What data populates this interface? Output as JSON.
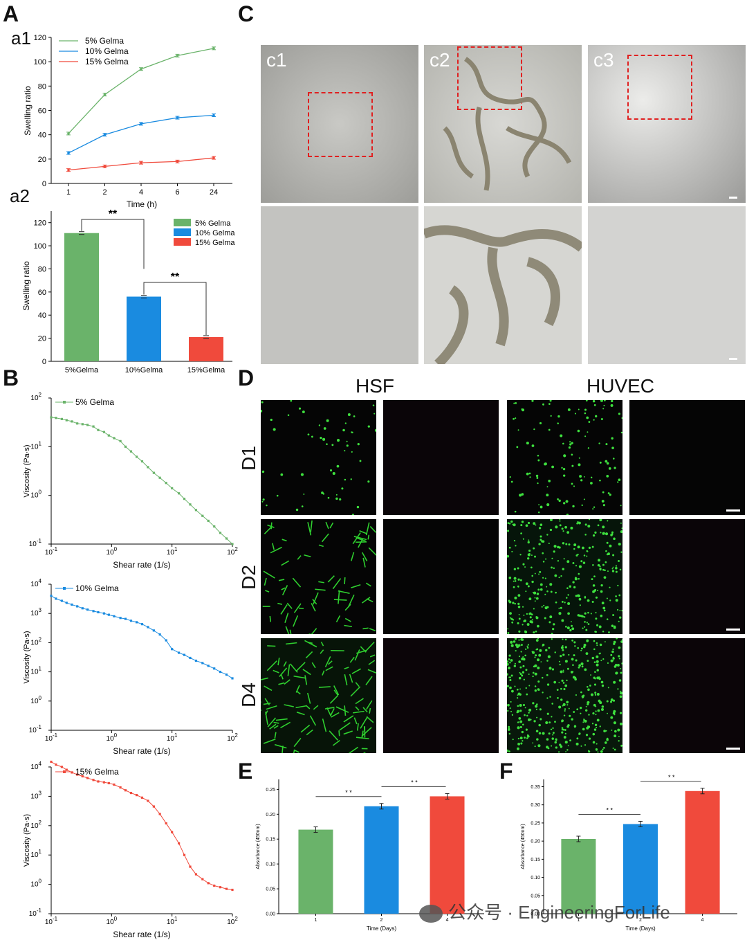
{
  "panels": {
    "A": "A",
    "a1": "a1",
    "a2": "a2",
    "B": "B",
    "C": "C",
    "D": "D",
    "E": "E",
    "F": "F"
  },
  "colors": {
    "green": "#6ab36a",
    "blue": "#1a8be0",
    "red": "#f04a3c"
  },
  "micro_labels": [
    "c1",
    "c2",
    "c3"
  ],
  "fluoro": {
    "columns": [
      "HSF",
      "HUVEC"
    ],
    "rows": [
      "D1",
      "D2",
      "D4"
    ]
  },
  "watermark": "公众号 · EngineeringForLife",
  "chart_data": [
    {
      "id": "a1",
      "type": "line",
      "ylabel": "Swelling ratio",
      "xlabel": "Time (h)",
      "categories": [
        "1",
        "2",
        "4",
        "6",
        "24"
      ],
      "ylim": [
        0,
        120
      ],
      "yticks": [
        0,
        20,
        40,
        60,
        80,
        100,
        120
      ],
      "legend": "top-left",
      "series": [
        {
          "name": "5% Gelma",
          "color": "#6ab36a",
          "values": [
            41,
            73,
            94,
            105,
            111
          ]
        },
        {
          "name": "10% Gelma",
          "color": "#1a8be0",
          "values": [
            25,
            40,
            49,
            54,
            56
          ]
        },
        {
          "name": "15% Gelma",
          "color": "#f04a3c",
          "values": [
            11,
            14,
            17,
            18,
            21
          ]
        }
      ]
    },
    {
      "id": "a2",
      "type": "bar",
      "ylabel": "Swelling ratio",
      "categories": [
        "5%Gelma",
        "10%Gelma",
        "15%Gelma"
      ],
      "values": [
        111,
        56,
        21
      ],
      "colors": [
        "#6ab36a",
        "#1a8be0",
        "#f04a3c"
      ],
      "ylim": [
        0,
        130
      ],
      "yticks": [
        0,
        20,
        40,
        60,
        80,
        100,
        120
      ],
      "legend_names": [
        "5% Gelma",
        "10% Gelma",
        "15% Gelma"
      ],
      "sig": [
        "**",
        "**"
      ]
    },
    {
      "id": "b1",
      "type": "line",
      "log": true,
      "name": "5% Gelma",
      "xlabel": "Shear rate (1/s)",
      "ylabel": "Viscosity (Pa·s)",
      "color": "#6ab36a",
      "ydecades": [
        -1,
        2
      ],
      "x": [
        0.1,
        0.12,
        0.15,
        0.18,
        0.22,
        0.27,
        0.33,
        0.4,
        0.5,
        0.6,
        0.75,
        0.9,
        1.1,
        1.4,
        1.7,
        2.1,
        2.6,
        3.2,
        4,
        5,
        6.3,
        8,
        10,
        13,
        16,
        20,
        25,
        32,
        40,
        50,
        63,
        80,
        100
      ],
      "y": [
        40,
        39,
        37,
        35,
        33,
        30,
        29,
        28,
        26,
        22,
        20,
        17,
        15,
        13,
        10,
        8,
        6.2,
        5,
        3.8,
        2.9,
        2.3,
        1.8,
        1.4,
        1.1,
        0.85,
        0.65,
        0.5,
        0.38,
        0.3,
        0.23,
        0.17,
        0.13,
        0.1
      ]
    },
    {
      "id": "b2",
      "type": "line",
      "log": true,
      "name": "10% Gelma",
      "xlabel": "Shear rate (1/s)",
      "ylabel": "Viscosity (Pa·s)",
      "color": "#1a8be0",
      "ydecades": [
        -1,
        4
      ],
      "x": [
        0.1,
        0.12,
        0.15,
        0.18,
        0.22,
        0.27,
        0.33,
        0.4,
        0.5,
        0.6,
        0.75,
        0.9,
        1.1,
        1.4,
        1.7,
        2.1,
        2.6,
        3.2,
        4,
        5,
        6.3,
        8,
        10,
        13,
        16,
        20,
        25,
        32,
        40,
        50,
        63,
        80,
        100
      ],
      "y": [
        4000,
        3200,
        2700,
        2300,
        2000,
        1750,
        1500,
        1350,
        1200,
        1100,
        1000,
        900,
        800,
        700,
        650,
        560,
        500,
        430,
        340,
        260,
        190,
        120,
        60,
        45,
        38,
        30,
        24,
        20,
        16,
        13,
        10,
        8,
        6
      ]
    },
    {
      "id": "b3",
      "type": "line",
      "log": true,
      "name": "15% Gelma",
      "xlabel": "Shear rate (1/s)",
      "ylabel": "Viscosity (Pa·s)",
      "color": "#f04a3c",
      "ydecades": [
        -1,
        4
      ],
      "x": [
        0.1,
        0.12,
        0.15,
        0.18,
        0.22,
        0.27,
        0.33,
        0.4,
        0.5,
        0.6,
        0.75,
        0.9,
        1.1,
        1.4,
        1.7,
        2.1,
        2.6,
        3.2,
        4,
        5,
        6.3,
        8,
        10,
        13,
        16,
        20,
        25,
        32,
        40,
        50,
        63,
        80,
        100
      ],
      "y": [
        15000,
        12000,
        10000,
        8000,
        6500,
        5500,
        4800,
        4200,
        3600,
        3200,
        3000,
        2800,
        2500,
        2000,
        1600,
        1300,
        1100,
        900,
        700,
        450,
        250,
        120,
        60,
        25,
        10,
        4,
        2.2,
        1.5,
        1.1,
        0.9,
        0.8,
        0.7,
        0.65
      ]
    },
    {
      "id": "E",
      "type": "bar",
      "ylabel": "Absorbance (450nm)",
      "xlabel": "Time (Days)",
      "categories": [
        "1",
        "2",
        "4"
      ],
      "values": [
        0.169,
        0.216,
        0.236
      ],
      "colors": [
        "#6ab36a",
        "#1a8be0",
        "#f04a3c"
      ],
      "ylim": [
        0,
        0.27
      ],
      "yticks": [
        "0.00",
        "0.05",
        "0.10",
        "0.15",
        "0.20",
        "0.25"
      ],
      "sig": [
        "* *",
        "* *"
      ]
    },
    {
      "id": "F",
      "type": "bar",
      "ylabel": "Absorbance (450nm)",
      "xlabel": "Time (Days)",
      "categories": [
        "1",
        "2",
        "4"
      ],
      "values": [
        0.206,
        0.247,
        0.338
      ],
      "colors": [
        "#6ab36a",
        "#1a8be0",
        "#f04a3c"
      ],
      "ylim": [
        0,
        0.37
      ],
      "yticks": [
        "0.00",
        "0.05",
        "0.10",
        "0.15",
        "0.20",
        "0.25",
        "0.30",
        "0.35"
      ],
      "sig": [
        "* *",
        "* *"
      ]
    }
  ]
}
